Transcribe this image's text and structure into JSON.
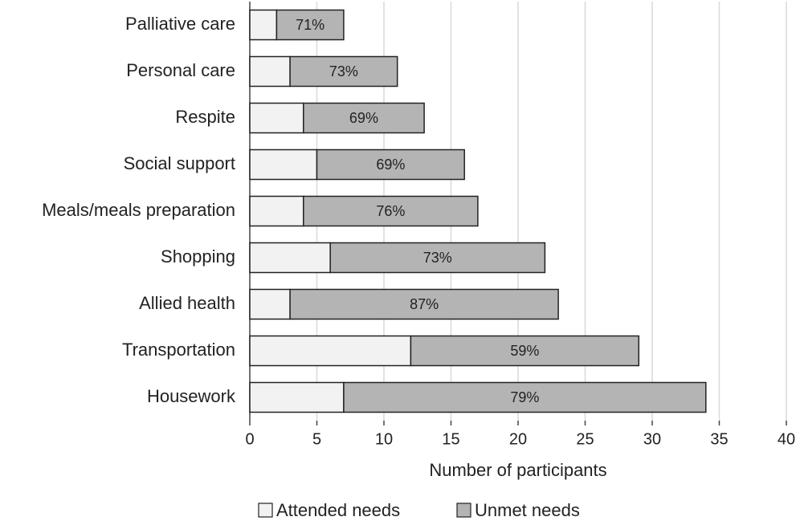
{
  "chart_data": {
    "type": "stacked_barh",
    "categories": [
      "Palliative care",
      "Personal care",
      "Respite",
      "Social support",
      "Meals/meals preparation",
      "Shopping",
      "Allied health",
      "Transportation",
      "Housework"
    ],
    "series": [
      {
        "name": "Attended needs",
        "color": "#f2f2f2",
        "values": [
          2,
          3,
          4,
          5,
          4,
          6,
          3,
          12,
          7
        ]
      },
      {
        "name": "Unmet needs",
        "color": "#b4b4b4",
        "values": [
          5,
          8,
          9,
          11,
          13,
          16,
          20,
          17,
          27
        ],
        "share_labels": [
          "71%",
          "73%",
          "69%",
          "69%",
          "76%",
          "73%",
          "87%",
          "59%",
          "79%"
        ]
      }
    ],
    "xlabel": "Number of participants",
    "xlim": [
      0,
      40
    ],
    "xticks": [
      0,
      5,
      10,
      15,
      20,
      25,
      30,
      35,
      40
    ],
    "grid": true
  }
}
